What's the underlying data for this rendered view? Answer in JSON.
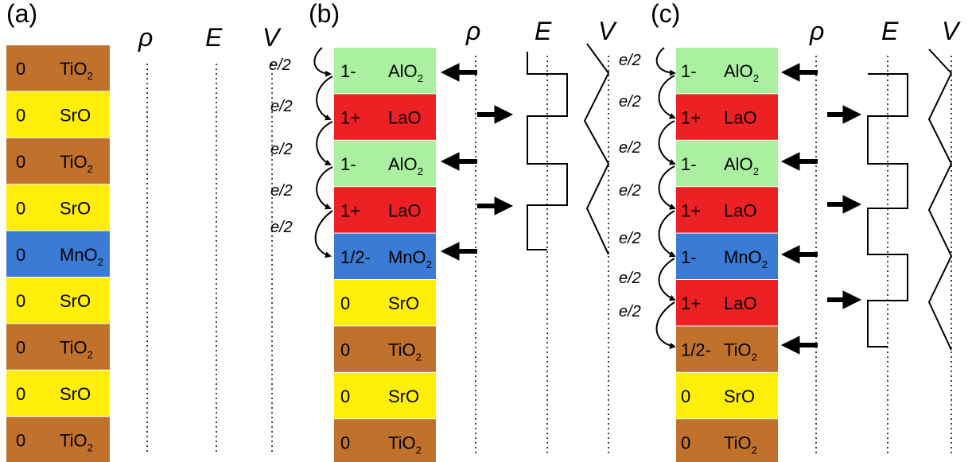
{
  "colors": {
    "TiO2": "#c0722d",
    "SrO": "#ffee0a",
    "MnO2": "#3a7bd5",
    "AlO2": "#aaf0a0",
    "LaO": "#ed2024"
  },
  "headers": {
    "rho": "ρ",
    "E": "E",
    "V": "V"
  },
  "electron_label": "e/2",
  "panels": [
    {
      "label": "(a)",
      "layers": [
        {
          "charge": "0",
          "name": "TiO",
          "sub": "2",
          "color": "TiO2"
        },
        {
          "charge": "0",
          "name": "SrO",
          "sub": "",
          "color": "SrO"
        },
        {
          "charge": "0",
          "name": "TiO",
          "sub": "2",
          "color": "TiO2"
        },
        {
          "charge": "0",
          "name": "SrO",
          "sub": "",
          "color": "SrO"
        },
        {
          "charge": "0",
          "name": "MnO",
          "sub": "2",
          "color": "MnO2"
        },
        {
          "charge": "0",
          "name": "SrO",
          "sub": "",
          "color": "SrO"
        },
        {
          "charge": "0",
          "name": "TiO",
          "sub": "2",
          "color": "TiO2"
        },
        {
          "charge": "0",
          "name": "SrO",
          "sub": "",
          "color": "SrO"
        },
        {
          "charge": "0",
          "name": "TiO",
          "sub": "2",
          "color": "TiO2"
        }
      ]
    },
    {
      "label": "(b)",
      "layers": [
        {
          "charge": "1-",
          "name": "AlO",
          "sub": "2",
          "color": "AlO2"
        },
        {
          "charge": "1+",
          "name": "LaO",
          "sub": "",
          "color": "LaO"
        },
        {
          "charge": "1-",
          "name": "AlO",
          "sub": "2",
          "color": "AlO2"
        },
        {
          "charge": "1+",
          "name": "LaO",
          "sub": "",
          "color": "LaO"
        },
        {
          "charge": "1/2-",
          "name": "MnO",
          "sub": "2",
          "color": "MnO2"
        },
        {
          "charge": "0",
          "name": "SrO",
          "sub": "",
          "color": "SrO"
        },
        {
          "charge": "0",
          "name": "TiO",
          "sub": "2",
          "color": "TiO2"
        },
        {
          "charge": "0",
          "name": "SrO",
          "sub": "",
          "color": "SrO"
        },
        {
          "charge": "0",
          "name": "TiO",
          "sub": "2",
          "color": "TiO2"
        }
      ]
    },
    {
      "label": "(c)",
      "layers": [
        {
          "charge": "1-",
          "name": "AlO",
          "sub": "2",
          "color": "AlO2"
        },
        {
          "charge": "1+",
          "name": "LaO",
          "sub": "",
          "color": "LaO"
        },
        {
          "charge": "1-",
          "name": "AlO",
          "sub": "2",
          "color": "AlO2"
        },
        {
          "charge": "1+",
          "name": "LaO",
          "sub": "",
          "color": "LaO"
        },
        {
          "charge": "1-",
          "name": "MnO",
          "sub": "2",
          "color": "MnO2"
        },
        {
          "charge": "1+",
          "name": "LaO",
          "sub": "",
          "color": "LaO"
        },
        {
          "charge": "1/2-",
          "name": "TiO",
          "sub": "2",
          "color": "TiO2"
        },
        {
          "charge": "0",
          "name": "SrO",
          "sub": "",
          "color": "SrO"
        },
        {
          "charge": "0",
          "name": "TiO",
          "sub": "2",
          "color": "TiO2"
        }
      ]
    }
  ]
}
